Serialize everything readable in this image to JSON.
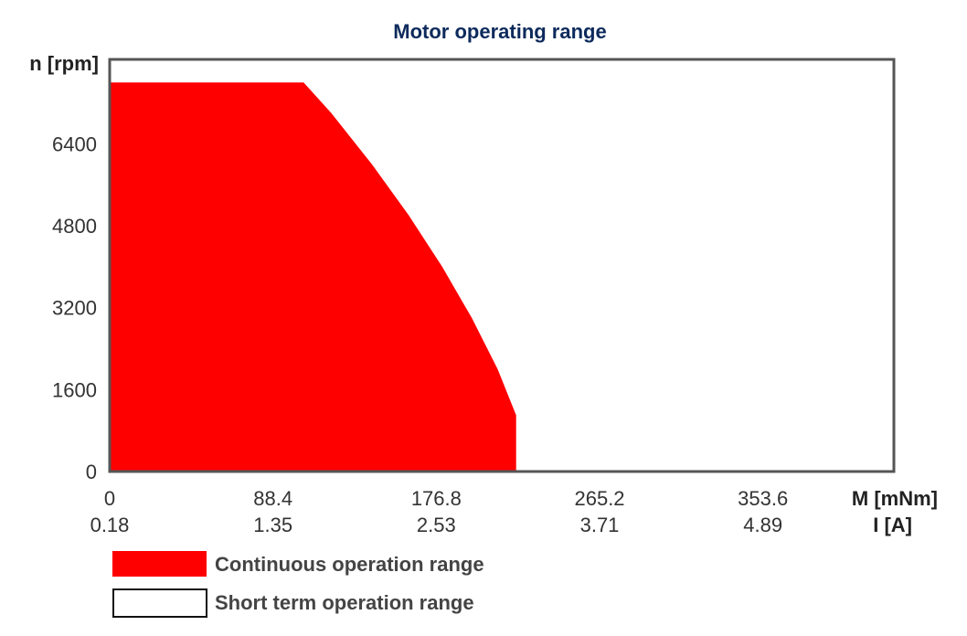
{
  "chart_data": {
    "type": "area",
    "title": "Motor operating range",
    "ylabel": "n [rpm]",
    "xlabel": "M [mNm]",
    "x2label": "I [A]",
    "xlim": [
      0,
      424.5
    ],
    "ylim": [
      0,
      8050
    ],
    "y_ticks": [
      0,
      1600,
      3200,
      4800,
      6400
    ],
    "y_tick_labels": [
      "0",
      "1600",
      "3200",
      "4800",
      "6400"
    ],
    "x_ticks": [
      0,
      88.4,
      176.8,
      265.2,
      353.6
    ],
    "x_tick_labels": [
      "0",
      "88.4",
      "176.8",
      "265.2",
      "353.6"
    ],
    "x2_tick_labels": [
      "0.18",
      "1.35",
      "2.53",
      "3.71",
      "4.89"
    ],
    "continuous_range": {
      "name": "Continuous operation range",
      "color": "#ff0000",
      "points": [
        [
          0,
          0
        ],
        [
          220,
          0
        ],
        [
          220,
          1100
        ],
        [
          210,
          2000
        ],
        [
          196,
          3000
        ],
        [
          180,
          4000
        ],
        [
          162,
          5000
        ],
        [
          142,
          6000
        ],
        [
          120,
          7000
        ],
        [
          105,
          7600
        ],
        [
          0,
          7600
        ]
      ]
    },
    "short_term_range": {
      "name": "Short term operation range",
      "color": "#ffffff"
    },
    "legend": [
      {
        "label": "Continuous operation range",
        "color": "#ff0000"
      },
      {
        "label": "Short term operation range",
        "color": "#ffffff"
      }
    ],
    "frame_color": "#555555"
  }
}
